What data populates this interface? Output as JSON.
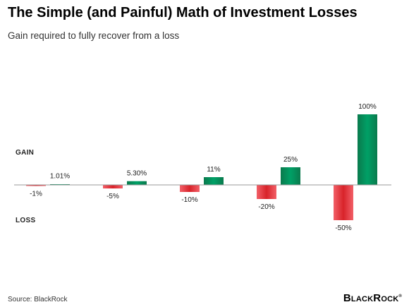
{
  "header": {
    "title": "The Simple (and Painful) Math of Investment Losses",
    "subtitle": "Gain required to fully recover from a loss"
  },
  "labels": {
    "gain": "GAIN",
    "loss": "LOSS"
  },
  "footer": {
    "source": "Source: BlackRock",
    "brand_b": "B",
    "brand_lack": "LACK",
    "brand_r": "R",
    "brand_ock": "OCK",
    "brand_tm": "®"
  },
  "colors": {
    "loss_bar": "#d8232a",
    "gain_bar": "#00925a",
    "axis": "#999999"
  },
  "chart_data": {
    "type": "bar",
    "groups": [
      {
        "loss": -1,
        "loss_label": "-1%",
        "gain": 1.01,
        "gain_label": "1.01%"
      },
      {
        "loss": -5,
        "loss_label": "-5%",
        "gain": 5.3,
        "gain_label": "5.30%"
      },
      {
        "loss": -10,
        "loss_label": "-10%",
        "gain": 11,
        "gain_label": "11%"
      },
      {
        "loss": -20,
        "loss_label": "-20%",
        "gain": 25,
        "gain_label": "25%"
      },
      {
        "loss": -50,
        "loss_label": "-50%",
        "gain": 100,
        "gain_label": "100%"
      }
    ],
    "ylim": [
      -50,
      100
    ],
    "grid": false,
    "legend": "none"
  }
}
